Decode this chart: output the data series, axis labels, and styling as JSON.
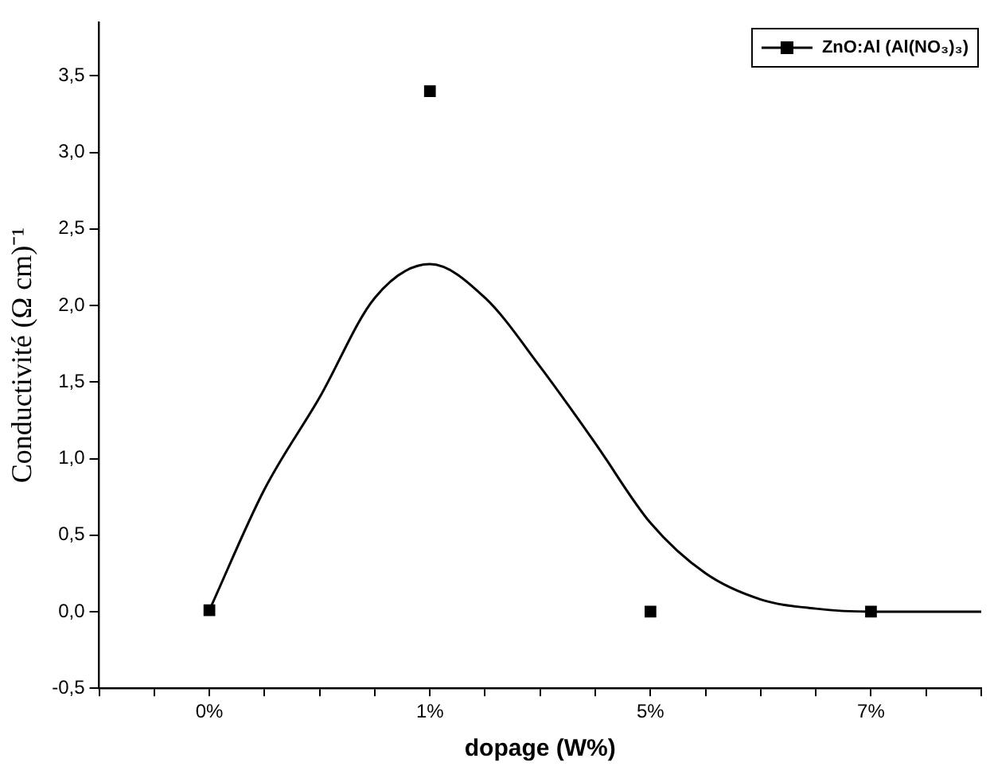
{
  "chart_data": {
    "type": "scatter",
    "xlabel": "dopage (W%)",
    "ylabel": "Conductivité (Ω cm)⁻¹",
    "categories": [
      null,
      null,
      "0%",
      null,
      null,
      null,
      "1%",
      null,
      null,
      null,
      "5%",
      null,
      null,
      null,
      "7%",
      null,
      null
    ],
    "ylim": [
      -0.5,
      3.85
    ],
    "yticks": [
      {
        "value": -0.5,
        "label": "-0,5"
      },
      {
        "value": 0,
        "label": "0,0"
      },
      {
        "value": 0.5,
        "label": "0,5"
      },
      {
        "value": 1,
        "label": "1,0"
      },
      {
        "value": 1.5,
        "label": "1,5"
      },
      {
        "value": 2,
        "label": "2,0"
      },
      {
        "value": 2.5,
        "label": "2,5"
      },
      {
        "value": 3,
        "label": "3,0"
      },
      {
        "value": 3.5,
        "label": "3,5"
      }
    ],
    "grid": false,
    "legend": "top right",
    "marker": "square",
    "series": [
      {
        "name": "ZnO:Al (Al(NO₃)₃)",
        "color": "#000000",
        "values": [
          null,
          null,
          0.01,
          null,
          null,
          null,
          3.4,
          null,
          null,
          null,
          0,
          null,
          null,
          null,
          0,
          null,
          null
        ]
      },
      {
        "type": "line",
        "color": "#000000",
        "line_style": "solid",
        "marker": "none",
        "values": [
          null,
          null,
          0.01,
          0.8,
          1.4,
          2.05,
          2.27,
          2.05,
          1.6,
          1.1,
          0.58,
          0.25,
          0.08,
          0.02,
          0,
          0,
          0
        ]
      }
    ]
  }
}
